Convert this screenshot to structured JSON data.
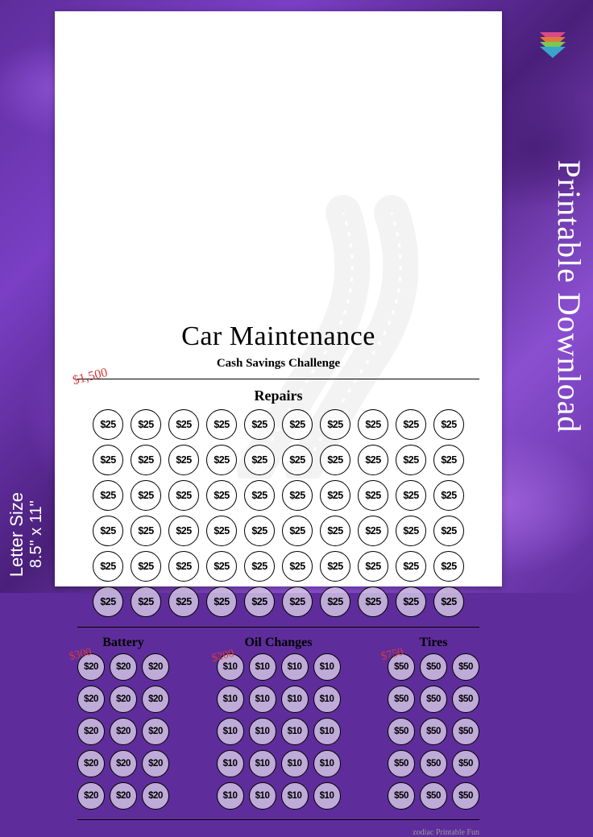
{
  "background": {
    "base_color": "#5e2d9b",
    "swirl_colors": [
      "#7a3fc5",
      "#4a1f7a",
      "#8a4fd0",
      "#9b5fd8",
      "#6a35a8"
    ]
  },
  "page": {
    "bg_color": "#ffffff",
    "title": "Car Maintenance",
    "subtitle": "Cash Savings Challenge",
    "title_fontsize": 34,
    "subtitle_fontsize": 15,
    "divider_color": "#000000"
  },
  "repairs": {
    "title": "Repairs",
    "goal_label": "$1,500",
    "goal_color": "#d93a3a",
    "rows": 6,
    "cols": 10,
    "bubble_value": "$25",
    "bubble_border": "#000000"
  },
  "battery": {
    "title": "Battery",
    "goal_label": "$300",
    "rows": 5,
    "cols": 3,
    "bubble_value": "$20"
  },
  "oil": {
    "title": "Oil Changes",
    "goal_label": "$200",
    "rows": 5,
    "cols": 4,
    "bubble_value": "$10"
  },
  "tires": {
    "title": "Tires",
    "goal_label": "$750",
    "rows": 5,
    "cols": 3,
    "bubble_value": "$50"
  },
  "footer_credit": "zodiac Printable Fun",
  "side_right": "Printable Download",
  "side_left_line1": "Letter Size",
  "side_left_line2": "8.5\" x 11\"",
  "chevron_colors": [
    "#d94a8a",
    "#e07a3a",
    "#7ac953",
    "#3aa5c9"
  ],
  "watermark": {
    "color": "#bfbfbf",
    "opacity": 0.18
  }
}
